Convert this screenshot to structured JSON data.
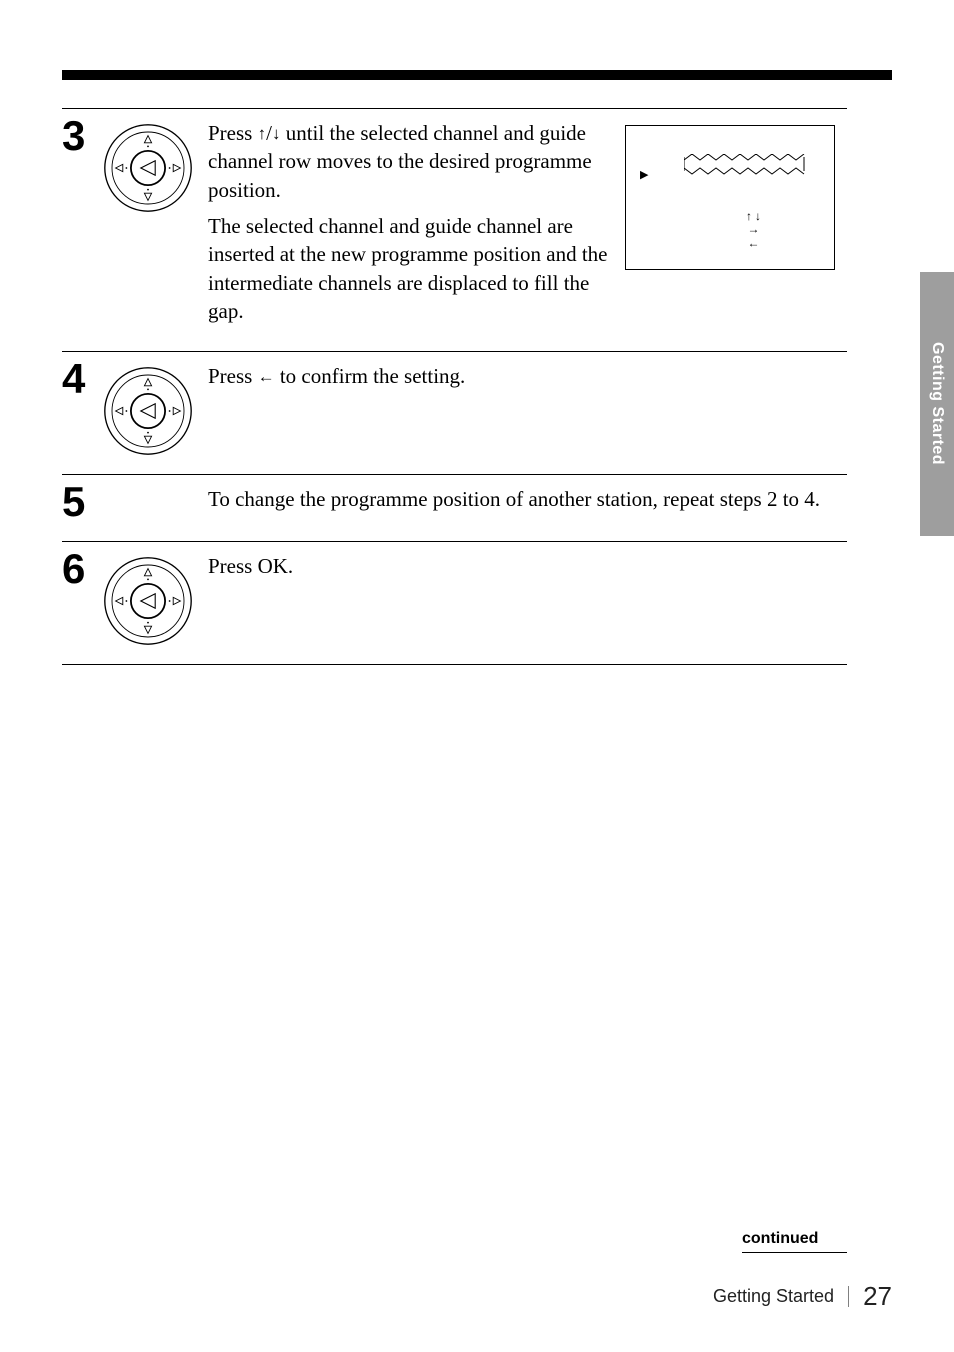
{
  "side_tab": "Getting Started",
  "steps": [
    {
      "num": "3",
      "has_icon": true,
      "has_screen": true,
      "paragraphs": [
        "Press {UP}/{DOWN} until the selected channel and guide channel row moves to the desired programme position.",
        "The selected channel and guide channel are inserted at the new programme position and the intermediate channels are displaced to fill the gap."
      ]
    },
    {
      "num": "4",
      "has_icon": true,
      "has_screen": false,
      "paragraphs": [
        "Press {LEFT} to confirm the setting."
      ]
    },
    {
      "num": "5",
      "has_icon": false,
      "has_screen": false,
      "paragraphs": [
        "To change the programme position of another station, repeat steps 2 to 4."
      ]
    },
    {
      "num": "6",
      "has_icon": true,
      "has_screen": false,
      "paragraphs": [
        "Press OK."
      ]
    }
  ],
  "arrows": {
    "up": "↑",
    "down": "↓",
    "left": "←",
    "right": "→"
  },
  "screen_symbols": {
    "play": "▶",
    "line3": "←"
  },
  "footer": {
    "continued": "continued",
    "section": "Getting Started",
    "page": "27"
  }
}
